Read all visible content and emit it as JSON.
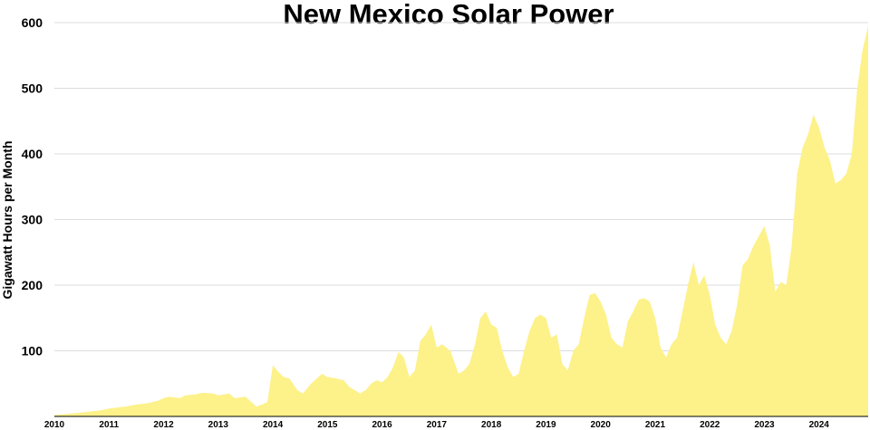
{
  "chart_data": {
    "type": "area",
    "title": "New Mexico Solar Power",
    "xlabel": "",
    "ylabel": "Gigawatt Hours per Month",
    "ylim": [
      0,
      600
    ],
    "xlim": [
      2010,
      2024.9
    ],
    "yticks": [
      100,
      200,
      300,
      400,
      500,
      600
    ],
    "xticks": [
      "2010",
      "2011",
      "2012",
      "2013",
      "2014",
      "2015",
      "2016",
      "2017",
      "2018",
      "2019",
      "2020",
      "2021",
      "2022",
      "2023",
      "2024"
    ],
    "grid": "horizontal",
    "colors": {
      "fill": "#fdf18a",
      "grid": "#dcdcdc"
    },
    "series": [
      {
        "x": [
          2010.0,
          2010.5,
          2010.7,
          2010.9,
          2011.0,
          2011.3,
          2011.5,
          2011.7,
          2011.9,
          2012.0,
          2012.1,
          2012.3,
          2012.4,
          2012.5,
          2012.6,
          2012.7,
          2012.9,
          2013.0,
          2013.2,
          2013.3,
          2013.5,
          2013.7,
          2013.8,
          2013.9,
          2014.0,
          2014.1,
          2014.2,
          2014.3,
          2014.45,
          2014.55,
          2014.7,
          2014.9,
          2015.0,
          2015.15,
          2015.3,
          2015.4,
          2015.5,
          2015.6,
          2015.7,
          2015.8,
          2015.9,
          2016.0,
          2016.1,
          2016.2,
          2016.3,
          2016.4,
          2016.5,
          2016.6,
          2016.7,
          2016.8,
          2016.9,
          2017.0,
          2017.1,
          2017.25,
          2017.4,
          2017.5,
          2017.6,
          2017.7,
          2017.8,
          2017.9,
          2018.0,
          2018.1,
          2018.2,
          2018.3,
          2018.4,
          2018.5,
          2018.6,
          2018.7,
          2018.8,
          2018.9,
          2019.0,
          2019.1,
          2019.2,
          2019.3,
          2019.4,
          2019.5,
          2019.6,
          2019.7,
          2019.8,
          2019.9,
          2020.0,
          2020.1,
          2020.2,
          2020.3,
          2020.4,
          2020.5,
          2020.6,
          2020.7,
          2020.8,
          2020.9,
          2021.0,
          2021.1,
          2021.2,
          2021.3,
          2021.4,
          2021.5,
          2021.6,
          2021.7,
          2021.8,
          2021.9,
          2022.0,
          2022.1,
          2022.2,
          2022.3,
          2022.4,
          2022.5,
          2022.6,
          2022.7,
          2022.8,
          2022.9,
          2023.0,
          2023.1,
          2023.2,
          2023.3,
          2023.4,
          2023.5,
          2023.6,
          2023.7,
          2023.8,
          2023.9,
          2024.0,
          2024.1,
          2024.2,
          2024.3,
          2024.4,
          2024.5,
          2024.6,
          2024.7,
          2024.8,
          2024.9
        ],
        "values": [
          2,
          6,
          8,
          10,
          12,
          15,
          18,
          20,
          24,
          28,
          30,
          28,
          32,
          33,
          34,
          36,
          35,
          32,
          35,
          28,
          30,
          15,
          18,
          22,
          78,
          68,
          60,
          58,
          40,
          35,
          50,
          65,
          60,
          58,
          55,
          45,
          40,
          35,
          40,
          50,
          55,
          52,
          60,
          75,
          98,
          90,
          60,
          70,
          115,
          125,
          140,
          105,
          110,
          100,
          65,
          70,
          80,
          110,
          150,
          160,
          140,
          135,
          100,
          75,
          60,
          65,
          100,
          130,
          150,
          155,
          150,
          120,
          125,
          80,
          70,
          100,
          110,
          150,
          185,
          188,
          175,
          155,
          120,
          110,
          105,
          145,
          160,
          178,
          180,
          175,
          150,
          105,
          90,
          110,
          120,
          160,
          200,
          235,
          200,
          215,
          185,
          140,
          120,
          110,
          130,
          170,
          230,
          240,
          260,
          275,
          290,
          260,
          190,
          205,
          200,
          260,
          370,
          410,
          430,
          460,
          440,
          410,
          390,
          355,
          360,
          370,
          400,
          500,
          560,
          595
        ]
      }
    ]
  }
}
